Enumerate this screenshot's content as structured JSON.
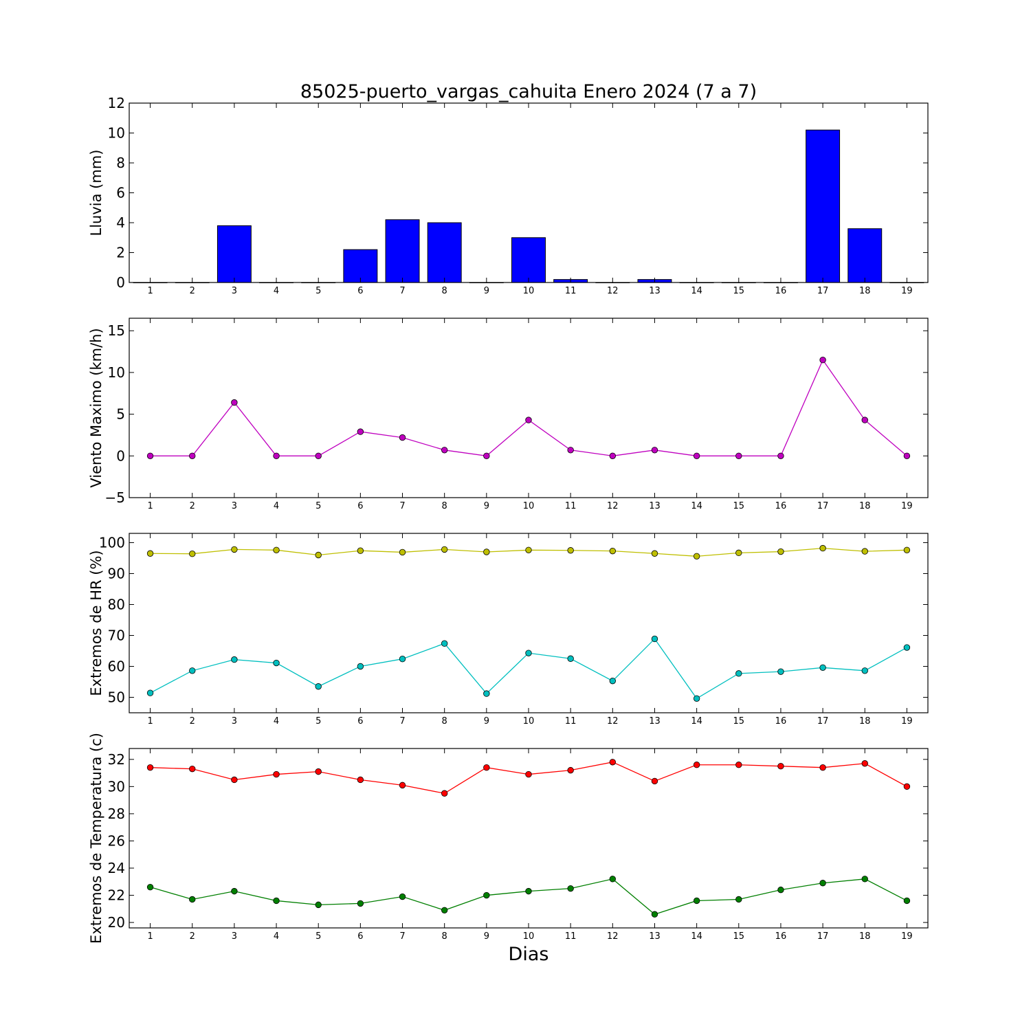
{
  "figure": {
    "title": "85025-puerto_vargas_cahuita Enero 2024  (7 a 7)",
    "xlabel": "Dias"
  },
  "chart_data": [
    {
      "type": "bar",
      "ylabel": "Lluvia (mm)",
      "ylim": [
        0,
        12
      ],
      "yticks": [
        0,
        2,
        4,
        6,
        8,
        10,
        12
      ],
      "xlim": [
        0.5,
        19.5
      ],
      "categories": [
        "1",
        "2",
        "3",
        "4",
        "5",
        "6",
        "7",
        "8",
        "9",
        "10",
        "11",
        "12",
        "13",
        "14",
        "15",
        "16",
        "17",
        "18",
        "19"
      ],
      "series": [
        {
          "values": [
            0,
            0,
            3.8,
            0,
            0,
            2.2,
            4.2,
            4.0,
            0,
            3.0,
            0.2,
            0,
            0.2,
            0,
            0,
            0,
            10.2,
            3.6,
            0
          ],
          "color": "#0000ff"
        }
      ],
      "grid": false
    },
    {
      "type": "line",
      "ylabel": "Viento Maximo (km/h)",
      "ylim": [
        -5,
        16.5
      ],
      "yticks": [
        -5,
        0,
        5,
        10,
        15
      ],
      "ytick_labels": [
        "−5",
        "0",
        "5",
        "10",
        "15"
      ],
      "xlim": [
        0.5,
        19.5
      ],
      "categories": [
        "1",
        "2",
        "3",
        "4",
        "5",
        "6",
        "7",
        "8",
        "9",
        "10",
        "11",
        "12",
        "13",
        "14",
        "15",
        "16",
        "17",
        "18",
        "19"
      ],
      "series": [
        {
          "values": [
            0,
            0,
            6.4,
            0,
            0,
            2.9,
            2.2,
            0.7,
            0,
            4.3,
            0.7,
            0,
            0.7,
            0,
            0,
            0,
            11.5,
            4.3,
            0
          ],
          "color": "#bf00bf"
        }
      ],
      "grid": false
    },
    {
      "type": "line",
      "ylabel": "Extremos de HR (%)",
      "ylim": [
        45,
        103
      ],
      "yticks": [
        50,
        60,
        70,
        80,
        90,
        100
      ],
      "xlim": [
        0.5,
        19.5
      ],
      "categories": [
        "1",
        "2",
        "3",
        "4",
        "5",
        "6",
        "7",
        "8",
        "9",
        "10",
        "11",
        "12",
        "13",
        "14",
        "15",
        "16",
        "17",
        "18",
        "19"
      ],
      "series": [
        {
          "values": [
            96.5,
            96.4,
            97.8,
            97.6,
            96.0,
            97.4,
            96.9,
            97.8,
            97.0,
            97.6,
            97.5,
            97.3,
            96.5,
            95.6,
            96.7,
            97.1,
            98.2,
            97.2,
            97.6
          ],
          "color": "#bfbf00"
        },
        {
          "values": [
            51.4,
            58.6,
            62.2,
            61.1,
            53.5,
            60.0,
            62.4,
            67.4,
            51.2,
            64.3,
            62.5,
            55.3,
            68.9,
            49.6,
            57.7,
            58.3,
            59.6,
            58.6,
            66.1
          ],
          "color": "#00bfbf"
        }
      ],
      "grid": false
    },
    {
      "type": "line",
      "ylabel": "Extremos de Temperatura (c)",
      "ylim": [
        19.6,
        32.8
      ],
      "yticks": [
        20,
        22,
        24,
        26,
        28,
        30,
        32
      ],
      "xlim": [
        0.5,
        19.5
      ],
      "categories": [
        "1",
        "2",
        "3",
        "4",
        "5",
        "6",
        "7",
        "8",
        "9",
        "10",
        "11",
        "12",
        "13",
        "14",
        "15",
        "16",
        "17",
        "18",
        "19"
      ],
      "series": [
        {
          "values": [
            31.4,
            31.3,
            30.5,
            30.9,
            31.1,
            30.5,
            30.1,
            29.5,
            31.4,
            30.9,
            31.2,
            31.8,
            30.4,
            31.6,
            31.6,
            31.5,
            31.4,
            31.7,
            30.0
          ],
          "color": "#ff0000"
        },
        {
          "values": [
            22.6,
            21.7,
            22.3,
            21.6,
            21.3,
            21.4,
            21.9,
            20.9,
            22.0,
            22.3,
            22.5,
            23.2,
            20.6,
            21.6,
            21.7,
            22.4,
            22.9,
            23.2,
            21.6
          ],
          "color": "#007f00"
        }
      ],
      "grid": false
    }
  ]
}
